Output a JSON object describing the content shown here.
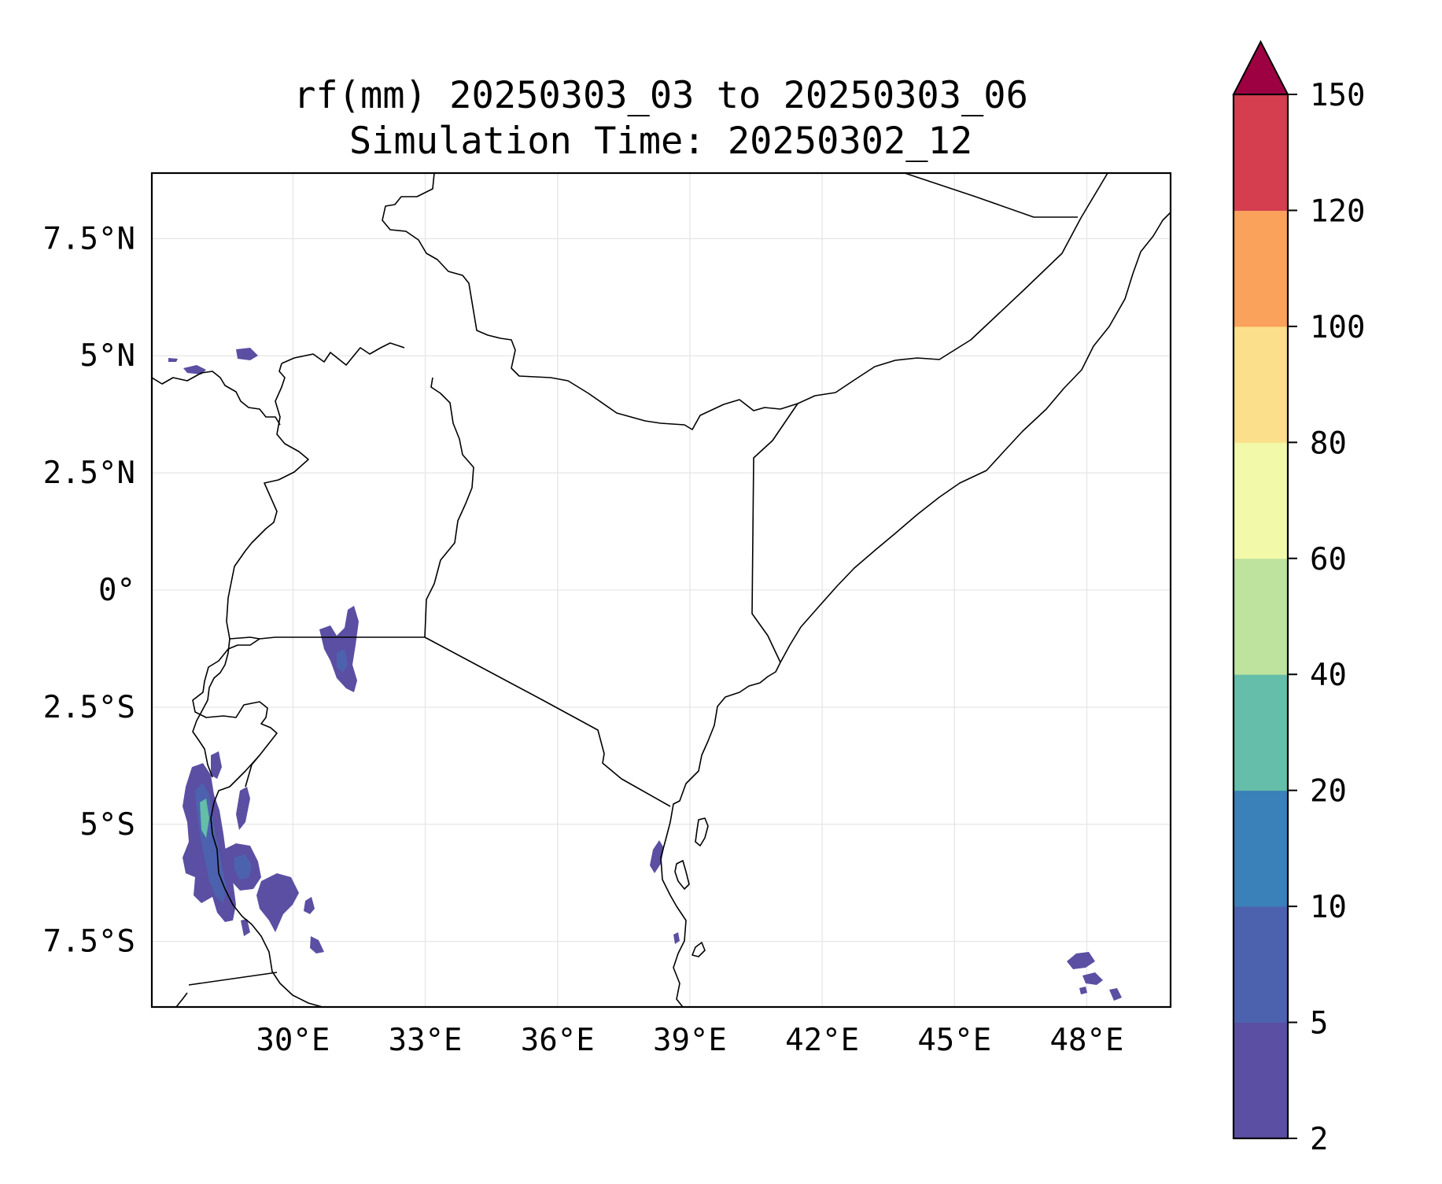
{
  "map": {
    "title_line1": "rf(mm) 20250303_03 to 20250303_06",
    "title_line2": "Simulation Time: 20250302_12",
    "extent": {
      "lon_min": 26.8,
      "lon_max": 49.9,
      "lat_min": -8.9,
      "lat_max": 8.9
    },
    "x_ticks": [
      {
        "lon": 30,
        "label": "30°E"
      },
      {
        "lon": 33,
        "label": "33°E"
      },
      {
        "lon": 36,
        "label": "36°E"
      },
      {
        "lon": 39,
        "label": "39°E"
      },
      {
        "lon": 42,
        "label": "42°E"
      },
      {
        "lon": 45,
        "label": "45°E"
      },
      {
        "lon": 48,
        "label": "48°E"
      }
    ],
    "y_ticks": [
      {
        "lat": 7.5,
        "label": "7.5°N"
      },
      {
        "lat": 5,
        "label": "5°N"
      },
      {
        "lat": 2.5,
        "label": "2.5°N"
      },
      {
        "lat": 0,
        "label": "0°"
      },
      {
        "lat": -2.5,
        "label": "2.5°S"
      },
      {
        "lat": -5,
        "label": "5°S"
      },
      {
        "lat": -7.5,
        "label": "7.5°S"
      }
    ],
    "colorbar": {
      "levels": [
        2,
        5,
        10,
        20,
        40,
        60,
        80,
        100,
        120,
        150
      ],
      "labels": [
        "2",
        "5",
        "10",
        "20",
        "40",
        "60",
        "80",
        "100",
        "120",
        "150"
      ],
      "colors": [
        "#5a4fa2",
        "#4d62ae",
        "#3a80b9",
        "#64bea9",
        "#bde39f",
        "#f2f9a8",
        "#fcdf8a",
        "#faa15b",
        "#d53e4f"
      ],
      "extend_color": "#9e0142"
    }
  }
}
